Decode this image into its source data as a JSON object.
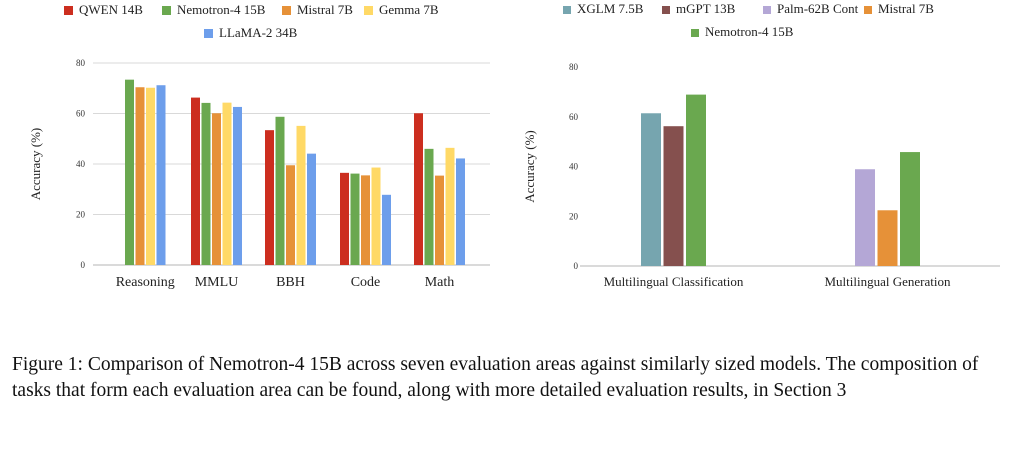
{
  "chart_data": [
    {
      "type": "bar",
      "title": "",
      "xlabel": "",
      "ylabel": "Accuracy (%)",
      "ylim": [
        0,
        80
      ],
      "yticks": [
        0,
        20,
        40,
        60,
        80
      ],
      "grid": true,
      "legend_position": "top",
      "categories": [
        "Reasoning",
        "MMLU",
        "BBH",
        "Code",
        "Math"
      ],
      "series": [
        {
          "name": "QWEN 14B",
          "color": "#cc2e1f",
          "values": [
            null,
            66.3,
            53.4,
            36.5,
            60.1
          ]
        },
        {
          "name": "Nemotron-4 15B",
          "color": "#6aa84f",
          "values": [
            73.4,
            64.2,
            58.7,
            36.2,
            46.0
          ]
        },
        {
          "name": "Mistral 7B",
          "color": "#e69138",
          "values": [
            70.4,
            60.1,
            39.5,
            35.5,
            35.4
          ]
        },
        {
          "name": "Gemma 7B",
          "color": "#ffd966",
          "values": [
            70.2,
            64.3,
            55.1,
            38.6,
            46.4
          ]
        },
        {
          "name": "LLaMA-2 34B",
          "color": "#6d9eeb",
          "values": [
            71.2,
            62.6,
            44.1,
            27.8,
            42.2
          ]
        }
      ]
    },
    {
      "type": "bar",
      "title": "",
      "xlabel": "",
      "ylabel": "Accuracy (%)",
      "ylim": [
        0,
        80
      ],
      "yticks": [
        0,
        20,
        40,
        60,
        80
      ],
      "grid": false,
      "legend_position": "top",
      "categories": [
        "Multilingual Classification",
        "Multilingual Generation"
      ],
      "series": [
        {
          "name": "XGLM 7.5B",
          "color": "#76a5af",
          "values": [
            61.4,
            null
          ]
        },
        {
          "name": "mGPT 13B",
          "color": "#85504e",
          "values": [
            56.2,
            null
          ]
        },
        {
          "name": "Palm-62B Cont",
          "color": "#b4a7d6",
          "values": [
            null,
            38.9
          ]
        },
        {
          "name": "Mistral 7B",
          "color": "#e69138",
          "values": [
            null,
            22.4
          ]
        },
        {
          "name": "Nemotron-4 15B",
          "color": "#6aa84f",
          "values": [
            68.9,
            45.8
          ]
        }
      ]
    }
  ],
  "caption": "Figure 1: Comparison of Nemotron-4 15B across seven evaluation areas against similarly sized models. The composition of tasks that form each evaluation area can be found, along with more detailed evaluation results, in Section 3"
}
